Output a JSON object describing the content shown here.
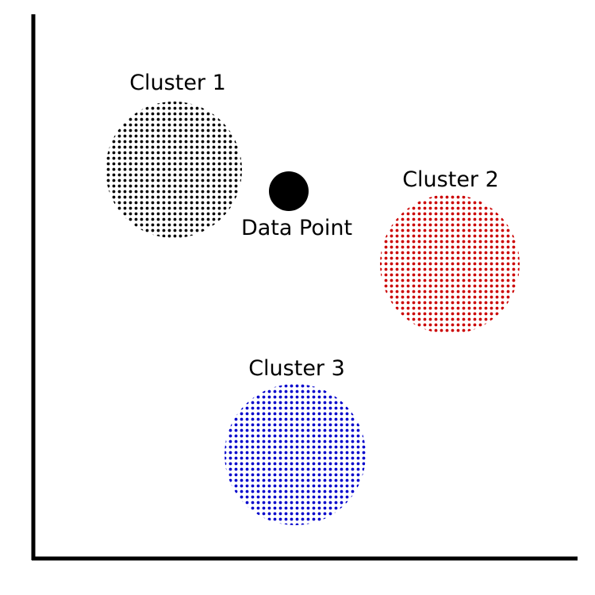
{
  "clusters": [
    {
      "label": "Cluster 1",
      "color": "#000000"
    },
    {
      "label": "Cluster 2",
      "color": "#cc0000"
    },
    {
      "label": "Cluster 3",
      "color": "#0000cc"
    }
  ],
  "data_point": {
    "label": "Data Point",
    "color": "#000000"
  }
}
